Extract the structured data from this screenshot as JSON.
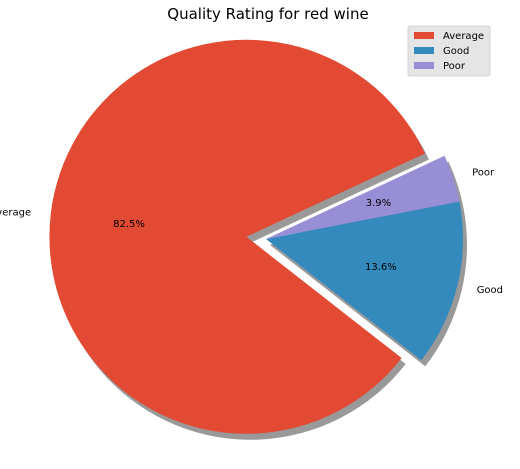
{
  "chart_data": {
    "type": "pie",
    "title": "Quality Rating for red wine",
    "categories": [
      "Average",
      "Good",
      "Poor"
    ],
    "values": [
      82.5,
      13.6,
      3.9
    ],
    "percent_labels": [
      "82.5%",
      "13.6%",
      "3.9%"
    ],
    "explode": [
      0.1,
      0,
      0
    ],
    "shadow": true,
    "legend_placement": "top-right",
    "colors": {
      "Average": "#E24A33",
      "Good": "#348ABD",
      "Poor": "#988ED5"
    }
  }
}
